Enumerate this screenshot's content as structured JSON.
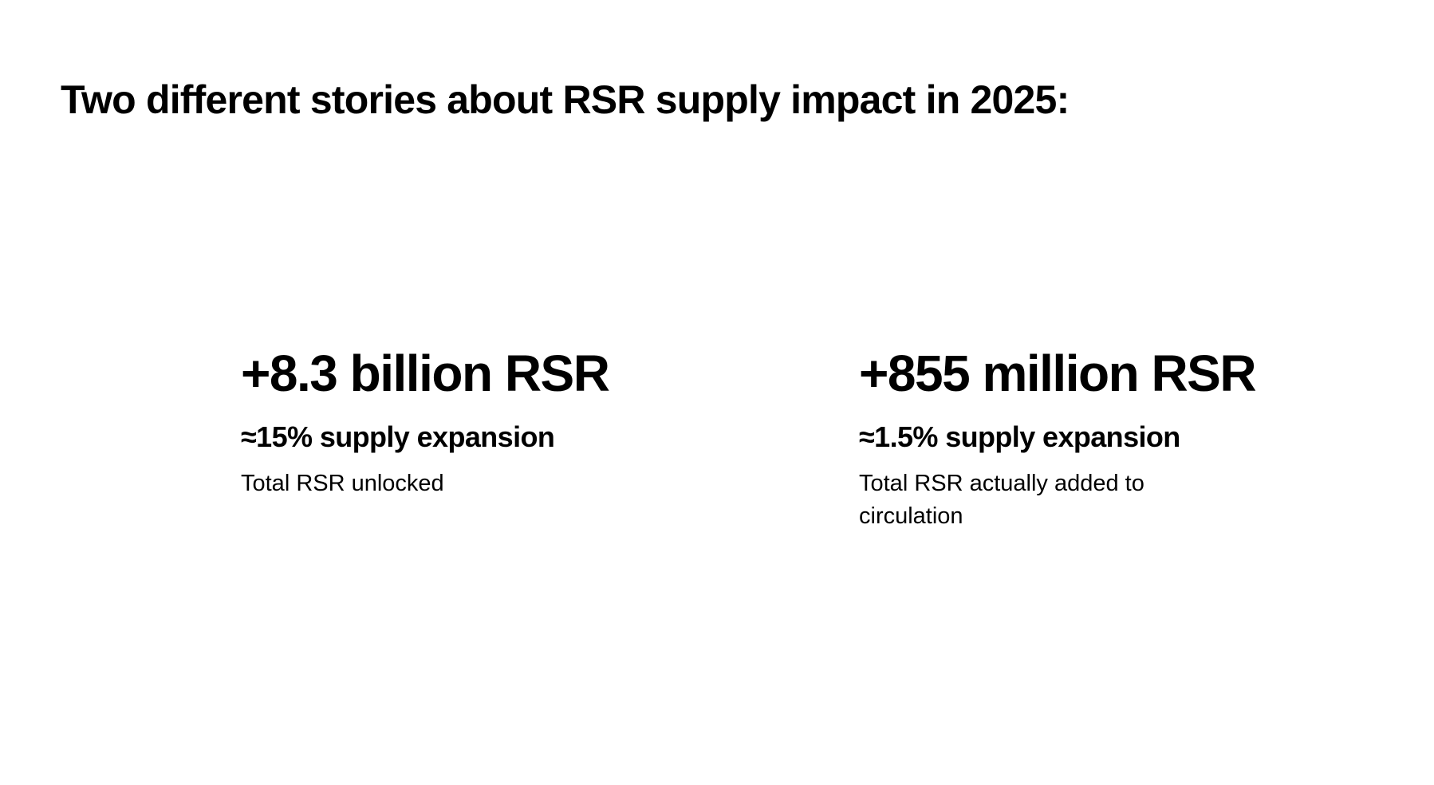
{
  "slide": {
    "title": "Two different stories about RSR supply impact in 2025:"
  },
  "stats": [
    {
      "value": "+8.3 billion RSR",
      "subtitle": "≈15% supply expansion",
      "description": "Total RSR unlocked"
    },
    {
      "value": "+855 million RSR",
      "subtitle": "≈1.5% supply expansion",
      "description": "Total RSR actually added to circulation"
    }
  ]
}
